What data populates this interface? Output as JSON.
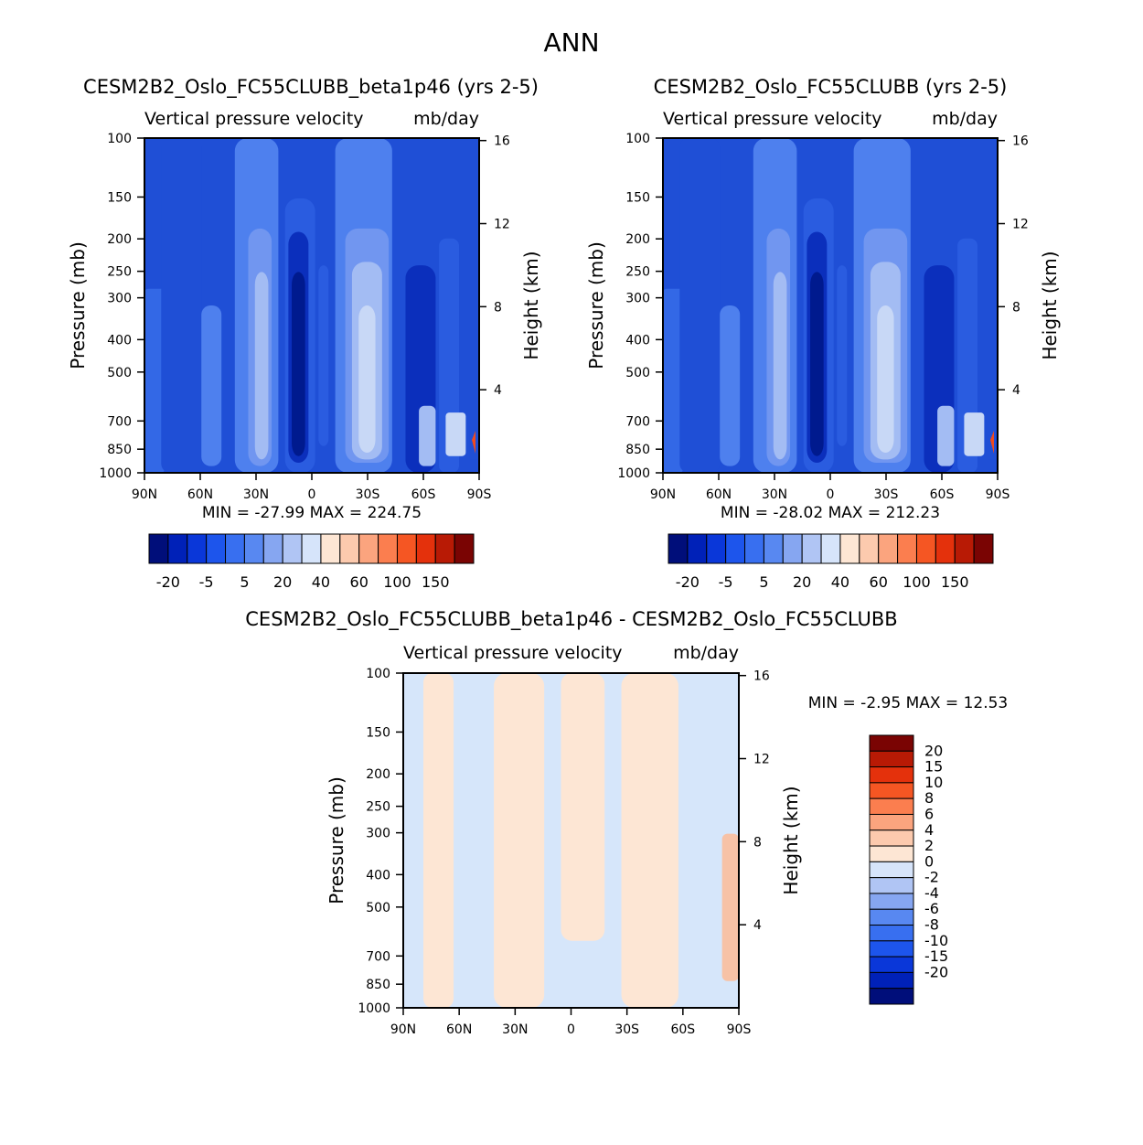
{
  "figure": {
    "title": "ANN"
  },
  "chart_data": [
    {
      "type": "heatmap",
      "title": "CESM2B2_Oslo_FC55CLUBB_beta1p46 (yrs 2-5)",
      "subtitle_left": "Vertical pressure velocity",
      "subtitle_right": "mb/day",
      "ylabel": "Pressure (mb)",
      "ylabel_right": "Height (km)",
      "x_ticks": [
        "90N",
        "60N",
        "30N",
        "0",
        "30S",
        "60S",
        "90S"
      ],
      "y_ticks": [
        "100",
        "150",
        "200",
        "250",
        "300",
        "400",
        "500",
        "700",
        "850",
        "1000"
      ],
      "y_right_ticks": [
        "16",
        "12",
        "8",
        "4"
      ],
      "ylim": [
        1000,
        100
      ],
      "stats_text": "MIN = -27.99   MAX = 224.75",
      "min": -27.99,
      "max": 224.75,
      "colorbar_labels": [
        "-20",
        "-5",
        "5",
        "20",
        "40",
        "60",
        "100",
        "150"
      ]
    },
    {
      "type": "heatmap",
      "title": "CESM2B2_Oslo_FC55CLUBB (yrs 2-5)",
      "subtitle_left": "Vertical pressure velocity",
      "subtitle_right": "mb/day",
      "ylabel": "Pressure (mb)",
      "ylabel_right": "Height (km)",
      "x_ticks": [
        "90N",
        "60N",
        "30N",
        "0",
        "30S",
        "60S",
        "90S"
      ],
      "y_ticks": [
        "100",
        "150",
        "200",
        "250",
        "300",
        "400",
        "500",
        "700",
        "850",
        "1000"
      ],
      "y_right_ticks": [
        "16",
        "12",
        "8",
        "4"
      ],
      "ylim": [
        1000,
        100
      ],
      "stats_text": "MIN = -28.02   MAX = 212.23",
      "min": -28.02,
      "max": 212.23,
      "colorbar_labels": [
        "-20",
        "-5",
        "5",
        "20",
        "40",
        "60",
        "100",
        "150"
      ]
    },
    {
      "type": "heatmap",
      "title": "CESM2B2_Oslo_FC55CLUBB_beta1p46 - CESM2B2_Oslo_FC55CLUBB",
      "subtitle_left": "Vertical pressure velocity",
      "subtitle_right": "mb/day",
      "ylabel": "Pressure (mb)",
      "ylabel_right": "Height (km)",
      "x_ticks": [
        "90N",
        "60N",
        "30N",
        "0",
        "30S",
        "60S",
        "90S"
      ],
      "y_ticks": [
        "100",
        "150",
        "200",
        "250",
        "300",
        "400",
        "500",
        "700",
        "850",
        "1000"
      ],
      "y_right_ticks": [
        "16",
        "12",
        "8",
        "4"
      ],
      "ylim": [
        1000,
        100
      ],
      "stats_text": "MIN =   -2.95   MAX =   12.53",
      "min": -2.95,
      "max": 12.53,
      "colorbar_labels": [
        "20",
        "15",
        "10",
        "8",
        "6",
        "4",
        "2",
        "0",
        "-2",
        "-4",
        "-6",
        "-8",
        "-10",
        "-15",
        "-20"
      ]
    }
  ],
  "palettes": {
    "main": [
      "#000e7a",
      "#0021b8",
      "#0a37d9",
      "#1d55ec",
      "#386ff0",
      "#5888f1",
      "#86a6f1",
      "#b0c5f4",
      "#d6e4fa",
      "#fde6d4",
      "#fccaae",
      "#fba47e",
      "#fb7e4f",
      "#f55623",
      "#e4310c",
      "#b81a05",
      "#7a0403"
    ],
    "diff_top_to_bottom": [
      "#7a0403",
      "#b81a05",
      "#e4310c",
      "#f55623",
      "#fb7e4f",
      "#fba47e",
      "#fccaae",
      "#fde6d4",
      "#d6e4fa",
      "#b0c5f4",
      "#86a6f1",
      "#5888f1",
      "#386ff0",
      "#1d55ec",
      "#0a37d9",
      "#0021b8",
      "#000e7a"
    ],
    "field_bands": [
      "#1f4fd6",
      "#3368e6",
      "#4e80ee",
      "#7196f0",
      "#a3bcf3",
      "#c8d8f6",
      "#2a5ce0",
      "#0b2fbc",
      "#001a8e"
    ],
    "diff_bands": [
      "#d6e6fa",
      "#fde6d4",
      "#f7c2a6"
    ]
  }
}
